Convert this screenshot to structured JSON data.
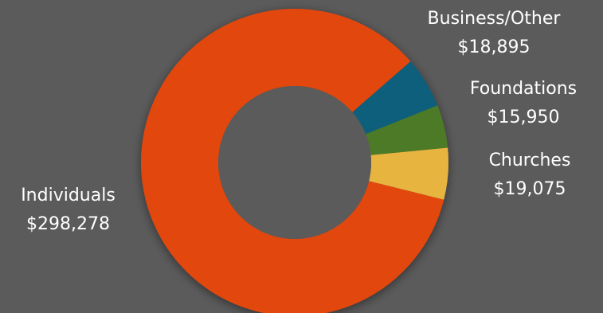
{
  "chart_data": {
    "type": "pie",
    "style": "donut",
    "categories": [
      "Individuals",
      "Business/Other",
      "Foundations",
      "Churches"
    ],
    "values": [
      298278,
      18895,
      15950,
      19075
    ],
    "value_labels": [
      "$298,278",
      "$18,895",
      "$15,950",
      "$19,075"
    ],
    "colors": [
      "#e2460b",
      "#0e5f7c",
      "#4d7a28",
      "#e8b441"
    ],
    "title": "",
    "legend": "none",
    "data_labels": "outside"
  },
  "theme": {
    "background": "#5b5b5b",
    "text_color": "#ffffff"
  }
}
